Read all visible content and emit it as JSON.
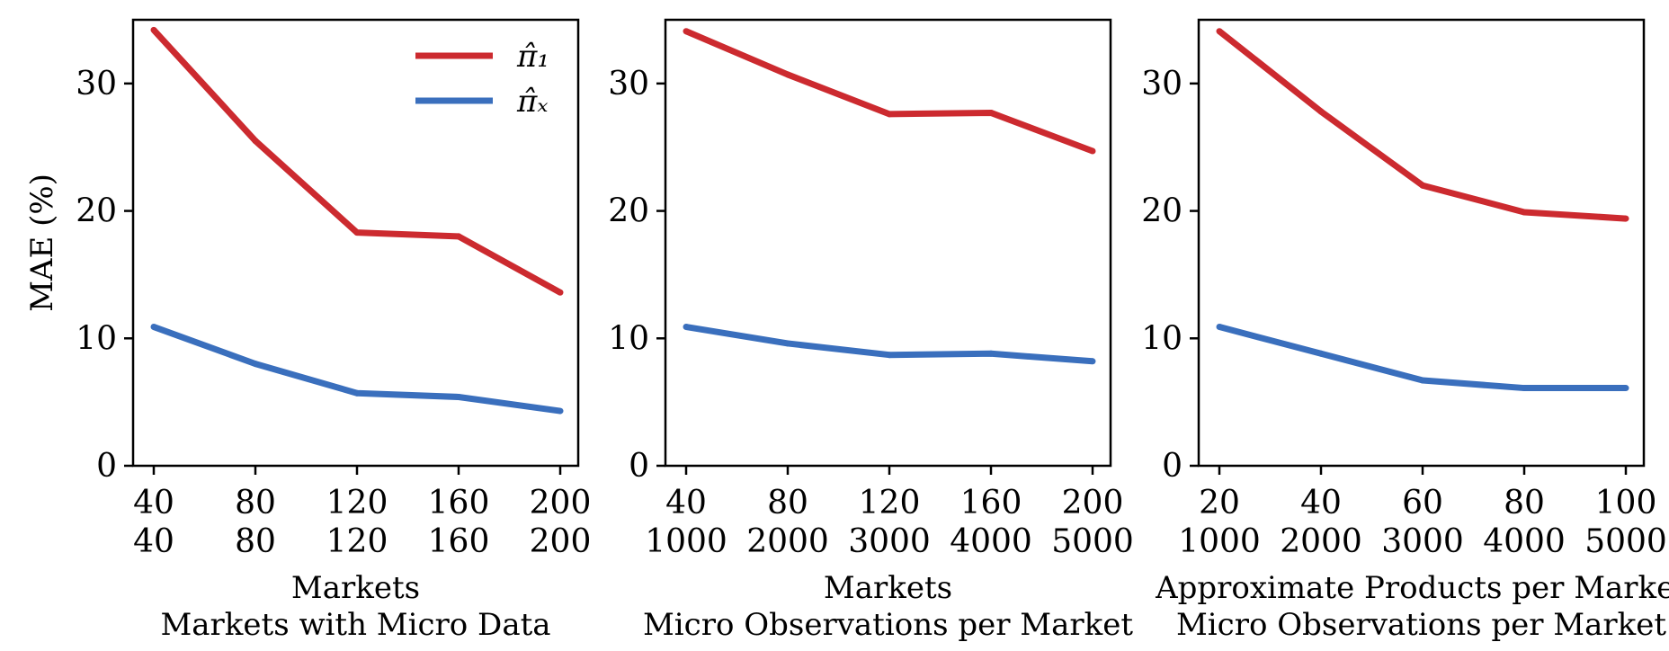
{
  "colors": {
    "pi_1": "#cc2a2f",
    "pi_x": "#3a6fbd"
  },
  "legend": {
    "position": "top-right",
    "series": [
      "π̂₁",
      "π̂ₓ"
    ]
  },
  "chart_data": [
    {
      "type": "line",
      "ylabel": "MAE (%)",
      "xlabel_line1": "Markets",
      "xlabel_line2": "Markets with Micro Data",
      "xtick_row1": [
        "40",
        "80",
        "120",
        "160",
        "200"
      ],
      "xtick_row2": [
        "40",
        "80",
        "120",
        "160",
        "200"
      ],
      "yticks": [
        "0",
        "10",
        "20",
        "30"
      ],
      "ylim": [
        0,
        35
      ],
      "series": [
        {
          "name": "π̂₁",
          "values": [
            34.2,
            25.5,
            18.3,
            18.0,
            13.6
          ]
        },
        {
          "name": "π̂ₓ",
          "values": [
            10.9,
            8.0,
            5.7,
            5.4,
            4.3
          ]
        }
      ]
    },
    {
      "type": "line",
      "xlabel_line1": "Markets",
      "xlabel_line2": "Micro Observations per Market",
      "xtick_row1": [
        "40",
        "80",
        "120",
        "160",
        "200"
      ],
      "xtick_row2": [
        "1000",
        "2000",
        "3000",
        "4000",
        "5000"
      ],
      "yticks": [
        "0",
        "10",
        "20",
        "30"
      ],
      "ylim": [
        0,
        35
      ],
      "series": [
        {
          "name": "π̂₁",
          "values": [
            34.1,
            30.7,
            27.6,
            27.7,
            24.7
          ]
        },
        {
          "name": "π̂ₓ",
          "values": [
            10.9,
            9.6,
            8.7,
            8.8,
            8.2
          ]
        }
      ]
    },
    {
      "type": "line",
      "xlabel_line1": "Approximate Products per Market",
      "xlabel_line2": "Micro Observations per Market",
      "xtick_row1": [
        "20",
        "40",
        "60",
        "80",
        "100"
      ],
      "xtick_row2": [
        "1000",
        "2000",
        "3000",
        "4000",
        "5000"
      ],
      "yticks": [
        "0",
        "10",
        "20",
        "30"
      ],
      "ylim": [
        0,
        35
      ],
      "series": [
        {
          "name": "π̂₁",
          "values": [
            34.1,
            27.8,
            22.0,
            19.9,
            19.4
          ]
        },
        {
          "name": "π̂ₓ",
          "values": [
            10.9,
            8.8,
            6.7,
            6.1,
            6.1
          ]
        }
      ]
    }
  ]
}
